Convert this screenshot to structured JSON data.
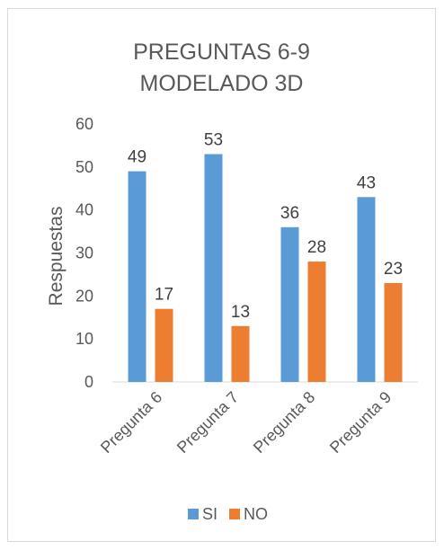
{
  "chart_data": {
    "type": "bar",
    "title_lines": [
      "PREGUNTAS 6-9",
      "MODELADO 3D"
    ],
    "ylabel": "Respuestas",
    "xlabel": "",
    "ylim": [
      0,
      60
    ],
    "yticks": [
      0,
      10,
      20,
      30,
      40,
      50,
      60
    ],
    "grid": false,
    "legend_position": "bottom",
    "categories": [
      "Pregunta 6",
      "Pregunta 7",
      "Pregunta 8",
      "Pregunta 9"
    ],
    "series": [
      {
        "name": "SI",
        "color": "#5b9bd5",
        "values": [
          49,
          53,
          36,
          43
        ]
      },
      {
        "name": "NO",
        "color": "#ed7d31",
        "values": [
          17,
          13,
          28,
          23
        ]
      }
    ]
  }
}
